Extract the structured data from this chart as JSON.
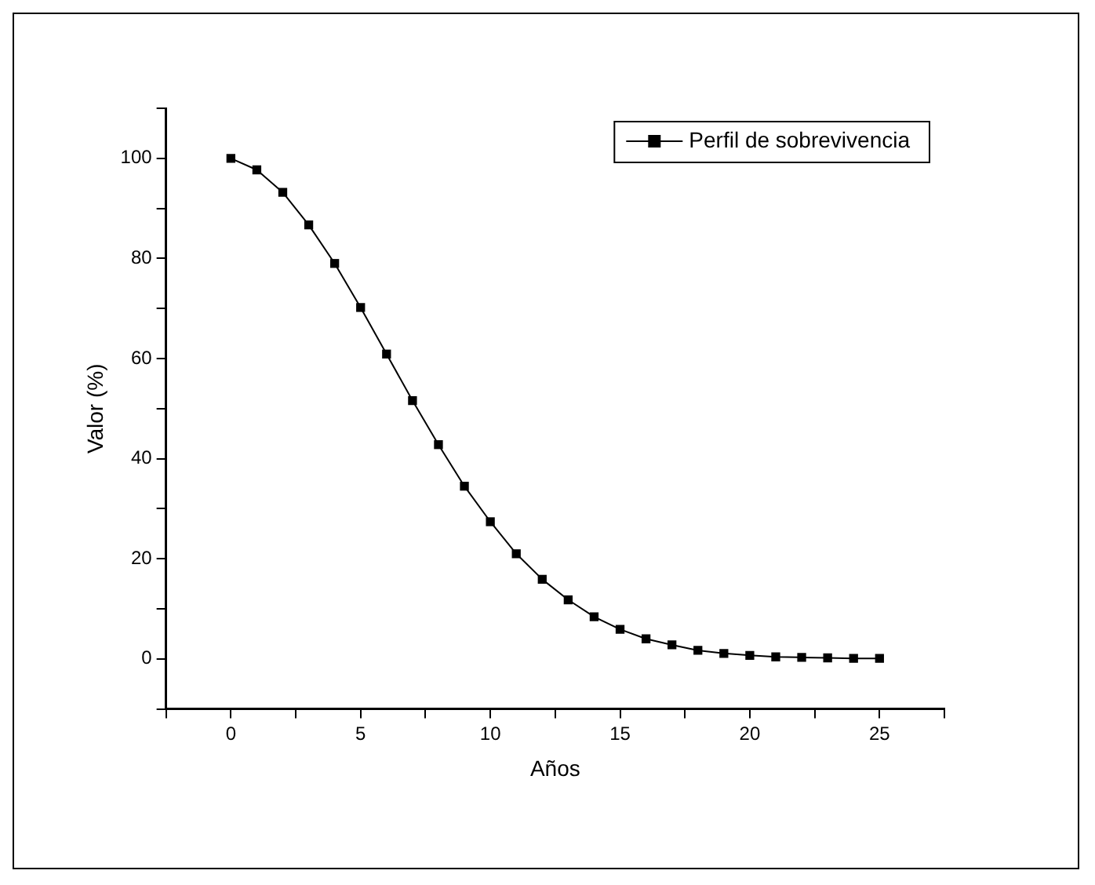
{
  "chart_data": {
    "type": "line",
    "xlabel": "Años",
    "ylabel": "Valor (%)",
    "x": [
      0,
      1,
      2,
      3,
      4,
      5,
      6,
      7,
      8,
      9,
      10,
      11,
      12,
      13,
      14,
      15,
      16,
      17,
      18,
      19,
      20,
      21,
      22,
      23,
      24,
      25
    ],
    "series": [
      {
        "name": "Perfil de sobrevivencia",
        "color": "#000000",
        "values": [
          100,
          97.7,
          93.2,
          86.7,
          79.0,
          70.2,
          60.9,
          51.6,
          42.8,
          34.5,
          27.4,
          21.0,
          15.9,
          11.8,
          8.4,
          5.9,
          4.0,
          2.8,
          1.7,
          1.1,
          0.7,
          0.4,
          0.3,
          0.2,
          0.1,
          0.1
        ]
      }
    ],
    "xlim": [
      -2.5,
      27.5
    ],
    "ylim": [
      -10,
      110
    ],
    "xticks": [
      {
        "value": -2.5,
        "label": null
      },
      0,
      {
        "value": 2.5,
        "label": null
      },
      5,
      {
        "value": 7.5,
        "label": null
      },
      10,
      {
        "value": 12.5,
        "label": null
      },
      15,
      {
        "value": 17.5,
        "label": null
      },
      20,
      {
        "value": 22.5,
        "label": null
      },
      25,
      {
        "value": 27.5,
        "label": null
      }
    ],
    "yticks": [
      {
        "value": -10,
        "label": null
      },
      0,
      {
        "value": 10,
        "label": null
      },
      20,
      {
        "value": 30,
        "label": null
      },
      40,
      {
        "value": 50,
        "label": null
      },
      60,
      {
        "value": 70,
        "label": null
      },
      80,
      {
        "value": 90,
        "label": null
      },
      100,
      {
        "value": 110,
        "label": null
      }
    ],
    "marker": "square",
    "line_style": "solid",
    "grid": false,
    "legend": "top right"
  }
}
